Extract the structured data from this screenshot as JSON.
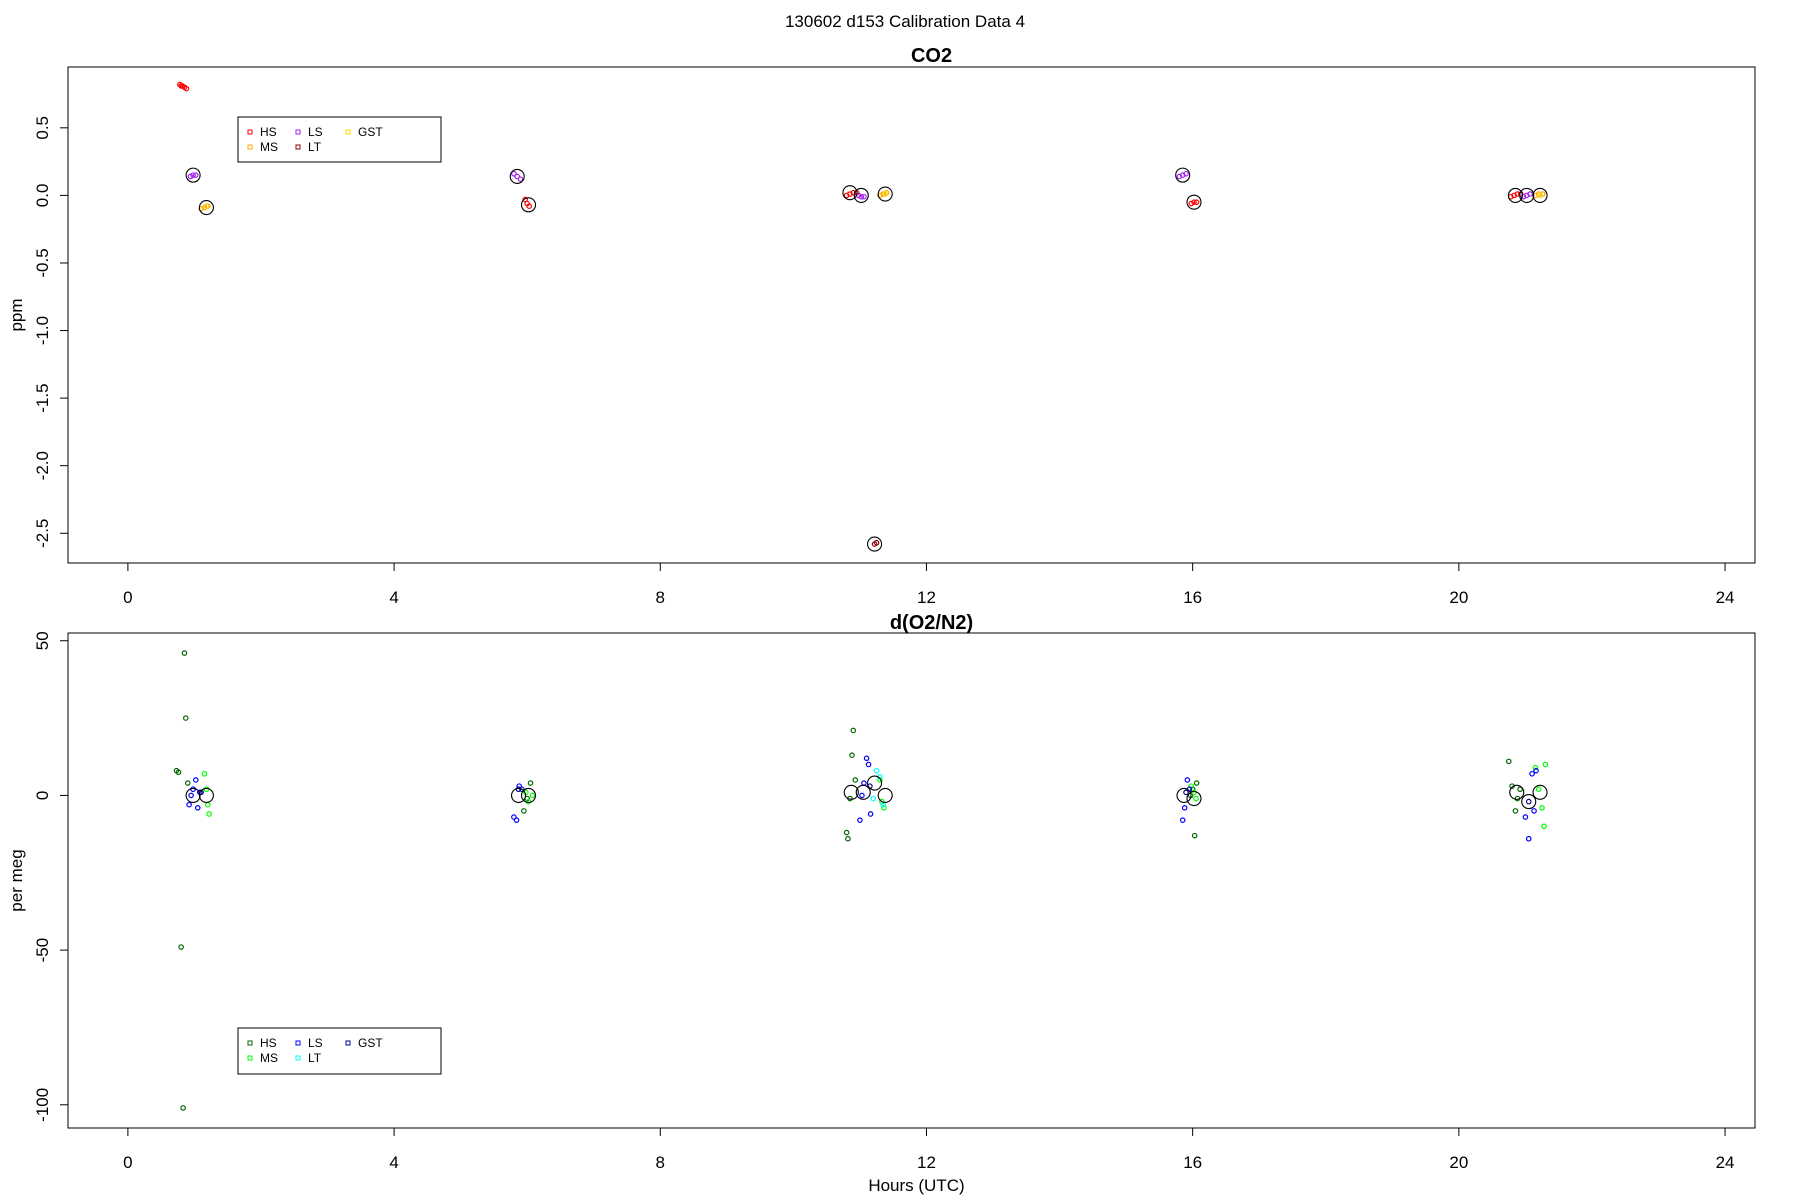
{
  "page_title": "130602   d153   Calibration Data 4",
  "chart_data": [
    {
      "type": "scatter",
      "title": "CO2",
      "xlabel": "",
      "ylabel": "ppm",
      "xlim": [
        -0.9,
        24.45
      ],
      "ylim": [
        -2.72,
        0.95
      ],
      "xticks": [
        0,
        4,
        8,
        12,
        16,
        20,
        24
      ],
      "yticks": [
        0.5,
        0.0,
        -0.5,
        -1.0,
        -1.5,
        -2.0,
        -2.5
      ],
      "ytick_labels": [
        "0.5",
        "0.0",
        "-0.5",
        "-1.0",
        "-1.5",
        "-2.0",
        "-2.5"
      ],
      "grid": false,
      "legend": {
        "placement": "top-left",
        "entries": [
          {
            "label": "HS",
            "color": "#ff0000"
          },
          {
            "label": "MS",
            "color": "#ffa500"
          },
          {
            "label": "LS",
            "color": "#a020f0"
          },
          {
            "label": "LT",
            "color": "#8b0000"
          },
          {
            "label": "GST",
            "color": "#ffd700"
          }
        ]
      },
      "series": [
        {
          "color": "#ff0000",
          "points": [
            [
              0.78,
              0.82
            ],
            [
              0.8,
              0.81
            ],
            [
              0.82,
              0.81
            ],
            [
              0.85,
              0.8
            ],
            [
              0.88,
              0.79
            ],
            [
              5.97,
              -0.03
            ],
            [
              6.0,
              -0.06
            ],
            [
              6.03,
              -0.08
            ],
            [
              10.8,
              0.0
            ],
            [
              10.85,
              0.01
            ],
            [
              10.9,
              0.02
            ],
            [
              10.95,
              0.02
            ],
            [
              15.98,
              -0.06
            ],
            [
              16.02,
              -0.05
            ],
            [
              16.06,
              -0.05
            ],
            [
              20.78,
              -0.01
            ],
            [
              20.83,
              0.0
            ],
            [
              20.88,
              0.01
            ],
            [
              20.93,
              0.01
            ]
          ]
        },
        {
          "color": "#ffa500",
          "points": [
            [
              1.1,
              -0.1
            ],
            [
              1.15,
              -0.09
            ],
            [
              1.2,
              -0.08
            ],
            [
              11.3,
              0.0
            ],
            [
              11.35,
              0.01
            ],
            [
              11.4,
              0.02
            ],
            [
              21.15,
              0.0
            ],
            [
              21.2,
              0.01
            ],
            [
              21.26,
              0.01
            ]
          ]
        },
        {
          "color": "#a020f0",
          "points": [
            [
              0.94,
              0.14
            ],
            [
              0.98,
              0.15
            ],
            [
              1.02,
              0.15
            ],
            [
              5.8,
              0.16
            ],
            [
              5.85,
              0.14
            ],
            [
              5.9,
              0.12
            ],
            [
              10.98,
              0.0
            ],
            [
              11.02,
              -0.01
            ],
            [
              11.06,
              -0.01
            ],
            [
              15.8,
              0.14
            ],
            [
              15.85,
              0.15
            ],
            [
              15.9,
              0.16
            ],
            [
              20.97,
              -0.01
            ],
            [
              21.02,
              0.0
            ],
            [
              21.07,
              0.01
            ]
          ]
        },
        {
          "color": "#8b0000",
          "points": [
            [
              11.22,
              -2.58
            ],
            [
              11.25,
              -2.57
            ]
          ]
        },
        {
          "color": "#ffd700",
          "points": [
            [
              1.18,
              -0.08
            ],
            [
              11.38,
              0.01
            ],
            [
              21.22,
              0.0
            ]
          ]
        }
      ],
      "means": [
        [
          0.98,
          0.15
        ],
        [
          1.18,
          -0.09
        ],
        [
          5.85,
          0.14
        ],
        [
          6.02,
          -0.07
        ],
        [
          10.85,
          0.02
        ],
        [
          11.02,
          0.0
        ],
        [
          11.22,
          -2.58
        ],
        [
          11.38,
          0.01
        ],
        [
          15.85,
          0.15
        ],
        [
          16.02,
          -0.05
        ],
        [
          20.85,
          0.0
        ],
        [
          21.02,
          0.0
        ],
        [
          21.22,
          0.0
        ]
      ]
    },
    {
      "type": "scatter",
      "title": "d(O2/N2)",
      "xlabel": "Hours (UTC)",
      "ylabel": "per meg",
      "xlim": [
        -0.9,
        24.45
      ],
      "ylim": [
        -107.5,
        52.5
      ],
      "xticks": [
        0,
        4,
        8,
        12,
        16,
        20,
        24
      ],
      "yticks": [
        50,
        0,
        -50,
        -100
      ],
      "ytick_labels": [
        "50",
        "0",
        "-50",
        "-100"
      ],
      "grid": false,
      "legend": {
        "placement": "bottom-left",
        "entries": [
          {
            "label": "HS",
            "color": "#006400"
          },
          {
            "label": "MS",
            "color": "#00ff00"
          },
          {
            "label": "LS",
            "color": "#0000ff"
          },
          {
            "label": "LT",
            "color": "#00ffff"
          },
          {
            "label": "GST",
            "color": "#00008b"
          }
        ]
      },
      "series": [
        {
          "color": "#006400",
          "points": [
            [
              0.73,
              8
            ],
            [
              0.76,
              7.5
            ],
            [
              0.8,
              -49
            ],
            [
              0.83,
              -101
            ],
            [
              0.85,
              46
            ],
            [
              0.87,
              25
            ],
            [
              0.9,
              4
            ],
            [
              5.95,
              -5
            ],
            [
              6.0,
              -1
            ],
            [
              6.05,
              4
            ],
            [
              10.8,
              -12
            ],
            [
              10.82,
              -14
            ],
            [
              10.85,
              -1
            ],
            [
              10.88,
              13
            ],
            [
              10.9,
              21
            ],
            [
              10.93,
              5
            ],
            [
              15.97,
              0
            ],
            [
              16.0,
              2
            ],
            [
              16.03,
              -13
            ],
            [
              16.06,
              4
            ],
            [
              20.75,
              11
            ],
            [
              20.8,
              3
            ],
            [
              20.85,
              -5
            ],
            [
              20.88,
              -1
            ],
            [
              20.92,
              2
            ]
          ]
        },
        {
          "color": "#00ff00",
          "points": [
            [
              1.15,
              7
            ],
            [
              1.18,
              2
            ],
            [
              1.2,
              -3
            ],
            [
              1.22,
              -6
            ],
            [
              5.98,
              1
            ],
            [
              6.02,
              -2
            ],
            [
              6.08,
              0
            ],
            [
              11.3,
              5
            ],
            [
              11.33,
              -2
            ],
            [
              11.36,
              -4
            ],
            [
              15.98,
              3
            ],
            [
              16.02,
              1
            ],
            [
              16.05,
              -1
            ],
            [
              21.15,
              9
            ],
            [
              21.2,
              2
            ],
            [
              21.25,
              -4
            ],
            [
              21.28,
              -10
            ],
            [
              21.3,
              10
            ]
          ]
        },
        {
          "color": "#0000ff",
          "points": [
            [
              0.92,
              -3
            ],
            [
              0.95,
              0
            ],
            [
              0.98,
              2
            ],
            [
              1.02,
              5
            ],
            [
              1.05,
              -4
            ],
            [
              1.08,
              1
            ],
            [
              5.8,
              -7
            ],
            [
              5.84,
              -8
            ],
            [
              5.88,
              3
            ],
            [
              5.92,
              2
            ],
            [
              11.0,
              -8
            ],
            [
              11.03,
              0
            ],
            [
              11.06,
              4
            ],
            [
              11.1,
              12
            ],
            [
              11.13,
              10
            ],
            [
              11.16,
              -6
            ],
            [
              15.85,
              -8
            ],
            [
              15.88,
              -4
            ],
            [
              15.92,
              5
            ],
            [
              15.95,
              2
            ],
            [
              21.0,
              -7
            ],
            [
              21.05,
              -14
            ],
            [
              21.1,
              7
            ],
            [
              21.13,
              -5
            ],
            [
              21.16,
              8
            ]
          ]
        },
        {
          "color": "#00ffff",
          "points": [
            [
              11.2,
              -1
            ],
            [
              11.25,
              8
            ],
            [
              11.3,
              6
            ],
            [
              11.35,
              -3
            ]
          ]
        },
        {
          "color": "#00008b",
          "points": [
            [
              1.1,
              1
            ],
            [
              5.87,
              2
            ],
            [
              11.15,
              3
            ],
            [
              15.9,
              1
            ],
            [
              21.05,
              -2
            ]
          ]
        }
      ],
      "means": [
        [
          0.98,
          0
        ],
        [
          1.18,
          0
        ],
        [
          5.87,
          0
        ],
        [
          6.02,
          0
        ],
        [
          10.87,
          1
        ],
        [
          11.05,
          1
        ],
        [
          11.22,
          4
        ],
        [
          11.38,
          0
        ],
        [
          15.87,
          0
        ],
        [
          16.02,
          -1
        ],
        [
          20.87,
          1
        ],
        [
          21.05,
          -2
        ],
        [
          21.22,
          1
        ]
      ]
    }
  ]
}
